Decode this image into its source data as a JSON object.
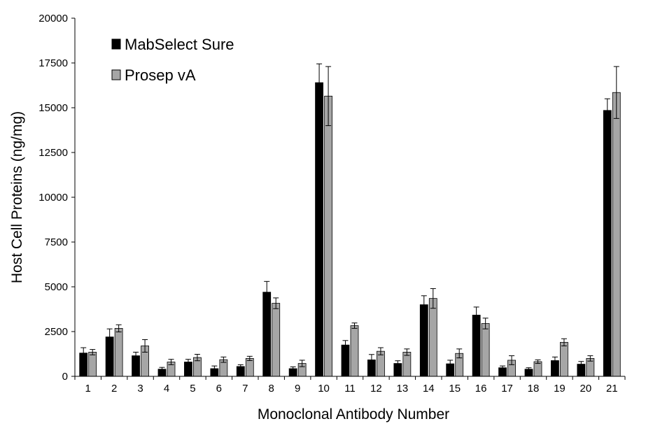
{
  "chart_data": {
    "type": "bar",
    "xlabel": "Monoclonal Antibody Number",
    "ylabel": "Host Cell Proteins (ng/mg)",
    "ylim": [
      0,
      20000
    ],
    "yticks": [
      0,
      2500,
      5000,
      7500,
      10000,
      12500,
      15000,
      17500,
      20000
    ],
    "categories": [
      "1",
      "2",
      "3",
      "4",
      "5",
      "6",
      "7",
      "8",
      "9",
      "10",
      "11",
      "12",
      "13",
      "14",
      "15",
      "16",
      "17",
      "18",
      "19",
      "20",
      "21"
    ],
    "series": [
      {
        "name": "MabSelect Sure",
        "color": "#000000",
        "values": [
          1300,
          2200,
          1150,
          400,
          800,
          430,
          550,
          4700,
          430,
          16400,
          1750,
          920,
          720,
          4000,
          700,
          3420,
          480,
          400,
          880,
          680,
          14850
        ],
        "errors": [
          300,
          450,
          200,
          100,
          150,
          150,
          100,
          600,
          100,
          1050,
          250,
          300,
          150,
          500,
          200,
          450,
          100,
          80,
          200,
          150,
          650
        ]
      },
      {
        "name": "Prosep vA",
        "color": "#a6a6a6",
        "values": [
          1350,
          2680,
          1700,
          800,
          1050,
          930,
          1000,
          4080,
          720,
          15650,
          2830,
          1400,
          1350,
          4350,
          1280,
          2950,
          900,
          820,
          1900,
          1000,
          15850
        ],
        "errors": [
          150,
          200,
          350,
          150,
          180,
          150,
          120,
          300,
          180,
          1650,
          150,
          200,
          180,
          550,
          250,
          300,
          250,
          100,
          200,
          150,
          1450
        ]
      }
    ],
    "legend_position": "top-left",
    "grid": false
  }
}
